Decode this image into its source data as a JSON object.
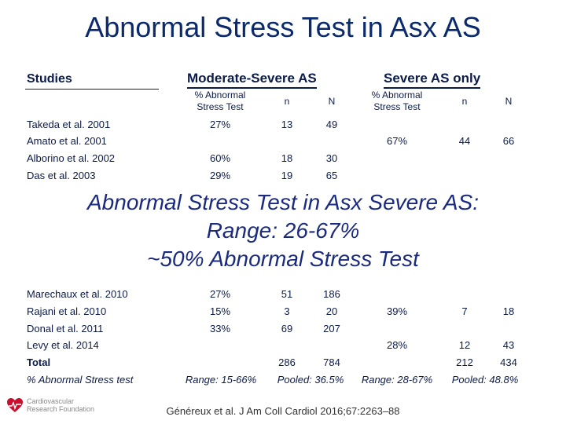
{
  "title": "Abnormal Stress Test in Asx AS",
  "header": {
    "studies": "Studies",
    "moderate_severe": "Moderate-Severe AS",
    "severe_only": "Severe AS only",
    "pct_abnormal": "% Abnormal Stress Test",
    "n_small": "n",
    "n_large": "N"
  },
  "rows_top": [
    {
      "study": "Takeda et al. 2001",
      "ms_pct": "27%",
      "ms_n": "13",
      "ms_N": "49",
      "s_pct": "",
      "s_n": "",
      "s_N": ""
    },
    {
      "study": "Amato et al. 2001",
      "ms_pct": "",
      "ms_n": "",
      "ms_N": "",
      "s_pct": "67%",
      "s_n": "44",
      "s_N": "66"
    },
    {
      "study": "Alborino et al. 2002",
      "ms_pct": "60%",
      "ms_n": "18",
      "ms_N": "30",
      "s_pct": "",
      "s_n": "",
      "s_N": ""
    },
    {
      "study": "Das et al. 2003",
      "ms_pct": "29%",
      "ms_n": "19",
      "ms_N": "65",
      "s_pct": "",
      "s_n": "",
      "s_N": ""
    }
  ],
  "banner": {
    "line1": "Abnormal Stress Test in Asx Severe AS:",
    "line2": "Range: 26-67%",
    "line3": "~50% Abnormal Stress Test"
  },
  "rows_bottom": [
    {
      "study": "Marechaux et al. 2010",
      "ms_pct": "27%",
      "ms_n": "51",
      "ms_N": "186",
      "s_pct": "",
      "s_n": "",
      "s_N": ""
    },
    {
      "study": "Rajani et al. 2010",
      "ms_pct": "15%",
      "ms_n": "3",
      "ms_N": "20",
      "s_pct": "39%",
      "s_n": "7",
      "s_N": "18"
    },
    {
      "study": "Donal et al. 2011",
      "ms_pct": "33%",
      "ms_n": "69",
      "ms_N": "207",
      "s_pct": "",
      "s_n": "",
      "s_N": ""
    },
    {
      "study": "Levy et al. 2014",
      "ms_pct": "",
      "ms_n": "",
      "ms_N": "",
      "s_pct": "28%",
      "s_n": "12",
      "s_N": "43"
    }
  ],
  "total": {
    "label": "Total",
    "ms_n": "286",
    "ms_N": "784",
    "s_n": "212",
    "s_N": "434"
  },
  "summary": {
    "label": "% Abnormal Stress test",
    "ms_range": "Range: 15-66%",
    "ms_pooled": "Pooled: 36.5%",
    "s_range": "Range: 28-67%",
    "s_pooled": "Pooled: 48.8%"
  },
  "citation": "Généreux et al. J Am Coll Cardiol 2016;67:2263–88",
  "logo": {
    "line1": "Cardiovascular",
    "line2": "Research Foundation",
    "icon": "heart-icon",
    "color": "#c8102e"
  }
}
